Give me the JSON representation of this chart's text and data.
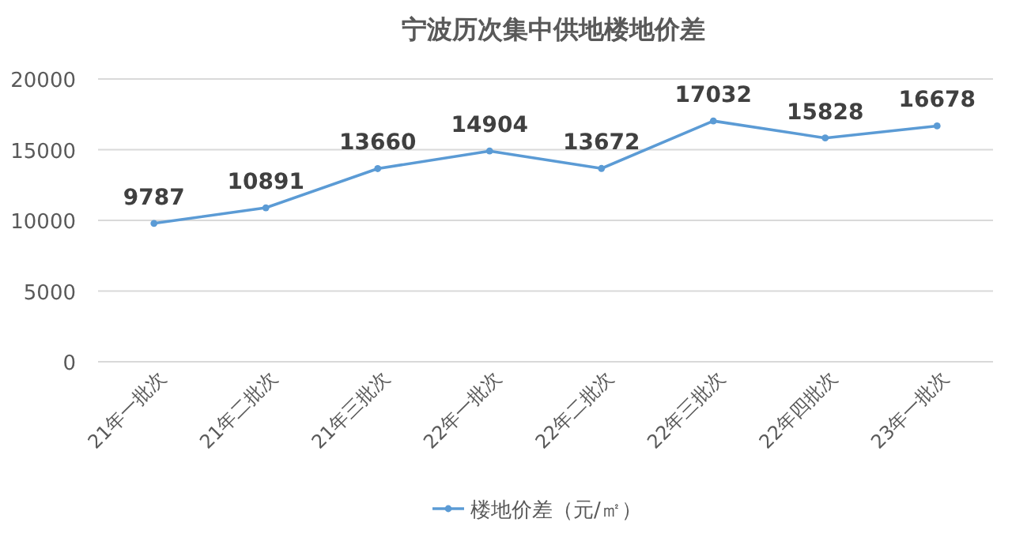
{
  "chart_data": {
    "type": "line",
    "title": "宁波历次集中供地楼地价差",
    "categories": [
      "21年一批次",
      "21年二批次",
      "21年三批次",
      "22年一批次",
      "22年二批次",
      "22年三批次",
      "22年四批次",
      "23年一批次"
    ],
    "series": [
      {
        "name": "楼地价差（元/㎡）",
        "color": "#5b9bd5",
        "values": [
          9787,
          10891,
          13660,
          14904,
          13672,
          17032,
          15828,
          16678
        ]
      }
    ],
    "ylim": [
      0,
      20000
    ],
    "yticks": [
      0,
      5000,
      10000,
      15000,
      20000
    ],
    "grid": "y",
    "legend": "bottom",
    "marker": "circle",
    "line_style": "solid",
    "data_labels": true
  }
}
